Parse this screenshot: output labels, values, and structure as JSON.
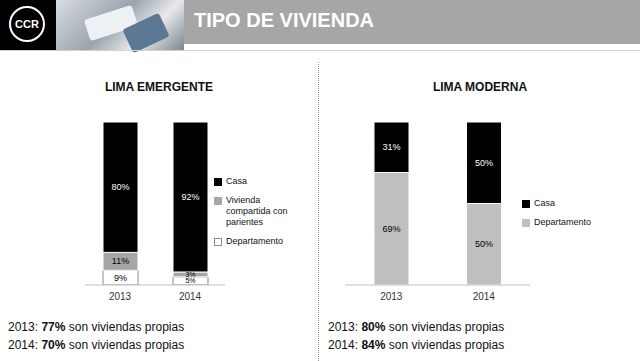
{
  "title": "TIPO DE VIVIENDA",
  "logo": "CCR",
  "chart_data": [
    {
      "type": "bar",
      "title": "LIMA EMERGENTE",
      "categories": [
        "2013",
        "2014"
      ],
      "stacked": true,
      "data_labels": true,
      "tick_labels": "x",
      "ylim": [
        0,
        100
      ],
      "series": [
        {
          "name": "Casa",
          "color": "#000000",
          "values": [
            80,
            92
          ],
          "value_labels": [
            "80%",
            "92%"
          ]
        },
        {
          "name": "Vivienda compartida con parientes",
          "color": "#a6a6a6",
          "values": [
            11,
            3
          ],
          "value_labels": [
            "11%",
            "3%"
          ]
        },
        {
          "name": "Departamento",
          "color": "#ffffff",
          "values": [
            9,
            5
          ],
          "value_labels": [
            "9%",
            "5%"
          ]
        }
      ],
      "annotations": [
        {
          "year": "2013:",
          "value": "77%",
          "text": "son viviendas propias"
        },
        {
          "year": "2014:",
          "value": "70%",
          "text": "son viviendas propias"
        }
      ]
    },
    {
      "type": "bar",
      "title": "LIMA MODERNA",
      "categories": [
        "2013",
        "2014"
      ],
      "stacked": true,
      "data_labels": true,
      "tick_labels": "x",
      "ylim": [
        0,
        100
      ],
      "series": [
        {
          "name": "Casa",
          "color": "#000000",
          "values": [
            31,
            50
          ],
          "value_labels": [
            "31%",
            "50%"
          ]
        },
        {
          "name": "Departamento",
          "color": "#bfbfbf",
          "values": [
            69,
            50
          ],
          "value_labels": [
            "69%",
            "50%"
          ]
        }
      ],
      "annotations": [
        {
          "year": "2013:",
          "value": "80%",
          "text": "son viviendas propias"
        },
        {
          "year": "2014:",
          "value": "84%",
          "text": "son viviendas propias"
        }
      ]
    }
  ]
}
